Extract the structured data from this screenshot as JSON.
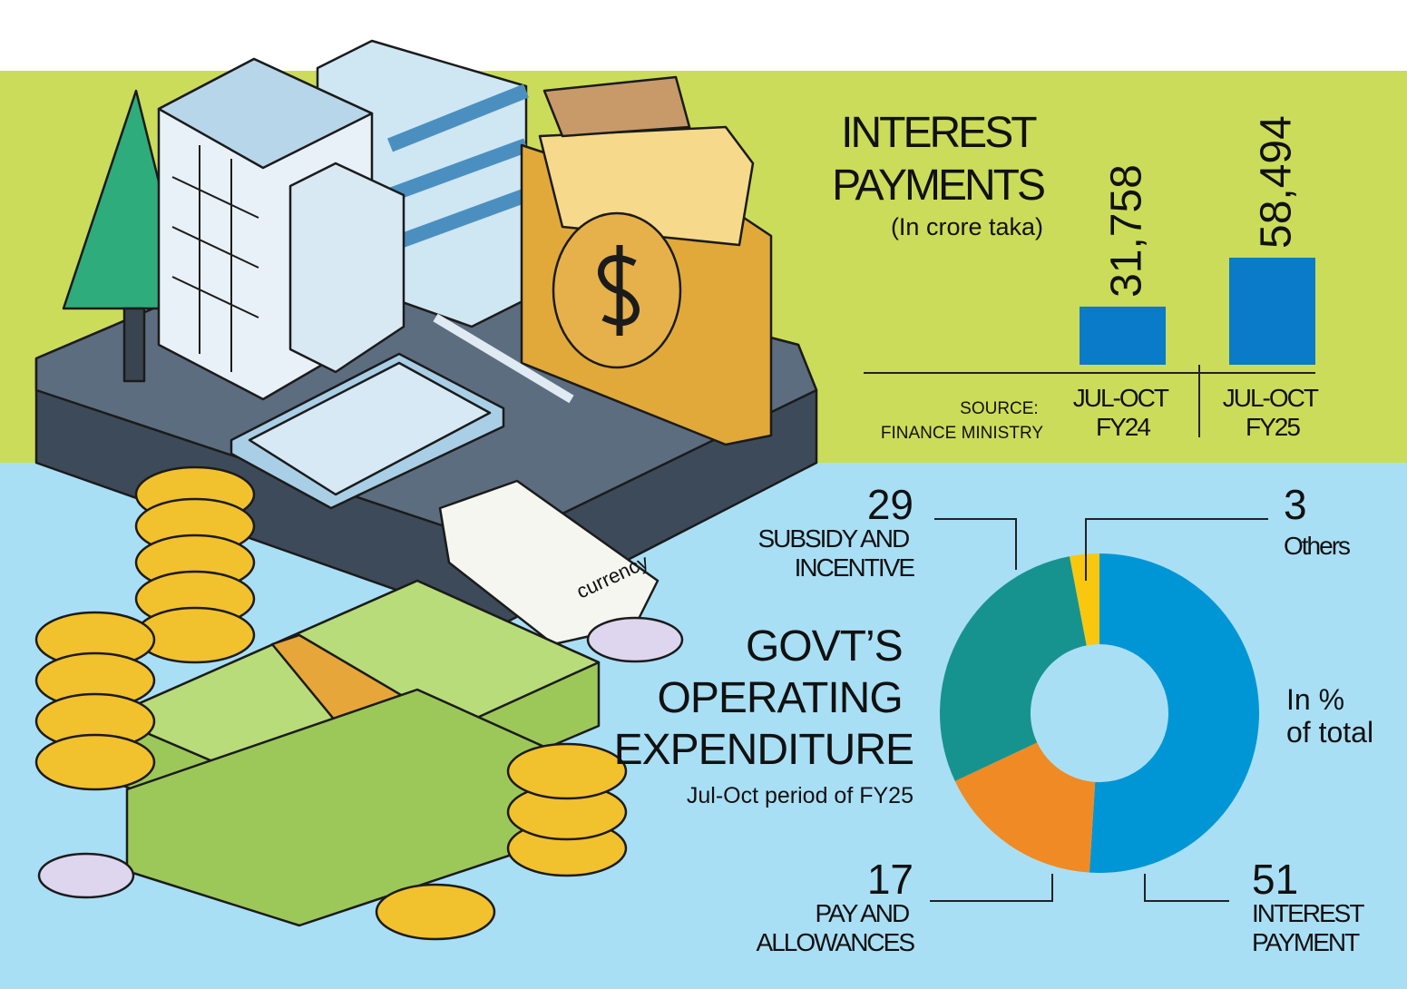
{
  "chart_data": [
    {
      "type": "bar",
      "title": "INTEREST PAYMENTS",
      "subtitle": "(In crore taka)",
      "source": "SOURCE: FINANCE MINISTRY",
      "categories": [
        "JUL-OCT FY24",
        "JUL-OCT FY25"
      ],
      "values": [
        31758,
        58494
      ],
      "value_labels": [
        "31,758",
        "58,494"
      ],
      "color": "#0a7bc9"
    },
    {
      "type": "donut",
      "title": "GOVT’S OPERATING EXPENDITURE",
      "subtitle": "Jul-Oct period of FY25",
      "note": "In % of total",
      "categories": [
        "INTEREST PAYMENT",
        "PAY AND ALLOWANCES",
        "SUBSIDY AND INCENTIVE",
        "Others"
      ],
      "values": [
        51,
        17,
        29,
        3
      ],
      "colors": [
        "#0096d6",
        "#f08a24",
        "#17938f",
        "#f9c80e"
      ]
    }
  ],
  "illustration_tag": "currency"
}
